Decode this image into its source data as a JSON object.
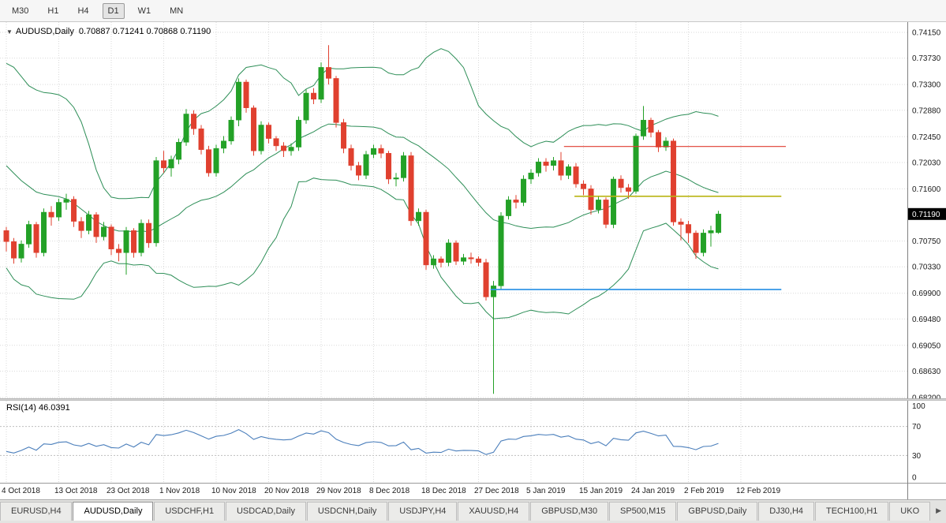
{
  "toolbar": {
    "timeframes": [
      {
        "label": "M30",
        "active": false
      },
      {
        "label": "H1",
        "active": false
      },
      {
        "label": "H4",
        "active": false
      },
      {
        "label": "D1",
        "active": true
      },
      {
        "label": "W1",
        "active": false
      },
      {
        "label": "MN",
        "active": false
      }
    ]
  },
  "chart": {
    "title": "AUDUSD,Daily",
    "ohlc_text": "0.70887 0.71241 0.70868 0.71190",
    "current_price": "0.71190",
    "menu_triangle": "▼"
  },
  "rsi": {
    "label": "RSI(14) 46.0391",
    "scale_labels": [
      "100",
      "70",
      "30",
      "0"
    ]
  },
  "colors": {
    "bull": "#23a127",
    "bear": "#e0402f",
    "bollinger": "#2d8e57",
    "rsi_line": "#4a7ebb",
    "hline_red": "#e03c31",
    "hline_olive": "#b9b513",
    "hline_blue": "#3296e6",
    "grid": "#d9d9d9",
    "axis_line": "#808080",
    "price_tag_bg": "#000000",
    "price_tag_text": "#ffffff"
  },
  "chart_data": {
    "type": "candlestick",
    "symbol": "AUDUSD",
    "period": "Daily",
    "last_ohlc": {
      "open": "0.70887",
      "high": "0.71241",
      "low": "0.70868",
      "close": "0.71190"
    },
    "y_axis_labels": [
      "0.74150",
      "0.73730",
      "0.73300",
      "0.72880",
      "0.72450",
      "0.72030",
      "0.71600",
      "0.70750",
      "0.70330",
      "0.69900",
      "0.69480",
      "0.69050",
      "0.68630",
      "0.68200"
    ],
    "x_ticks": [
      {
        "i": 0,
        "label": "4 Oct 2018"
      },
      {
        "i": 7,
        "label": "13 Oct 2018"
      },
      {
        "i": 14,
        "label": "23 Oct 2018"
      },
      {
        "i": 21,
        "label": "1 Nov 2018"
      },
      {
        "i": 28,
        "label": "10 Nov 2018"
      },
      {
        "i": 35,
        "label": "20 Nov 2018"
      },
      {
        "i": 42,
        "label": "29 Nov 2018"
      },
      {
        "i": 49,
        "label": "8 Dec 2018"
      },
      {
        "i": 56,
        "label": "18 Dec 2018"
      },
      {
        "i": 63,
        "label": "27 Dec 2018"
      },
      {
        "i": 70,
        "label": "5 Jan 2019"
      },
      {
        "i": 77,
        "label": "15 Jan 2019"
      },
      {
        "i": 84,
        "label": "24 Jan 2019"
      },
      {
        "i": 91,
        "label": "2 Feb 2019"
      },
      {
        "i": 98,
        "label": "12 Feb 2019"
      }
    ],
    "candles": [
      [
        0.7092,
        0.7098,
        0.7058,
        0.7074
      ],
      [
        0.7074,
        0.708,
        0.7038,
        0.7047
      ],
      [
        0.7047,
        0.7076,
        0.704,
        0.707
      ],
      [
        0.707,
        0.7108,
        0.7064,
        0.7102
      ],
      [
        0.7102,
        0.7106,
        0.7048,
        0.7056
      ],
      [
        0.7056,
        0.7128,
        0.705,
        0.7122
      ],
      [
        0.7122,
        0.7132,
        0.71,
        0.7114
      ],
      [
        0.7114,
        0.7144,
        0.7108,
        0.7138
      ],
      [
        0.7138,
        0.7152,
        0.7126,
        0.7143
      ],
      [
        0.7143,
        0.7148,
        0.7098,
        0.7107
      ],
      [
        0.7107,
        0.7114,
        0.708,
        0.7092
      ],
      [
        0.7092,
        0.7124,
        0.7086,
        0.7118
      ],
      [
        0.7118,
        0.7122,
        0.7072,
        0.7082
      ],
      [
        0.7082,
        0.7106,
        0.7076,
        0.7098
      ],
      [
        0.7098,
        0.7102,
        0.7052,
        0.7062
      ],
      [
        0.7062,
        0.707,
        0.7042,
        0.7056
      ],
      [
        0.7056,
        0.7098,
        0.702,
        0.7092
      ],
      [
        0.7092,
        0.7096,
        0.7048,
        0.7056
      ],
      [
        0.7056,
        0.711,
        0.705,
        0.7104
      ],
      [
        0.7104,
        0.711,
        0.7064,
        0.7072
      ],
      [
        0.7072,
        0.7212,
        0.7066,
        0.7206
      ],
      [
        0.7206,
        0.7222,
        0.7186,
        0.7194
      ],
      [
        0.7194,
        0.7214,
        0.718,
        0.7208
      ],
      [
        0.7208,
        0.7242,
        0.72,
        0.7236
      ],
      [
        0.7236,
        0.729,
        0.723,
        0.7282
      ],
      [
        0.7282,
        0.7288,
        0.7248,
        0.7258
      ],
      [
        0.7258,
        0.7264,
        0.7216,
        0.7224
      ],
      [
        0.7224,
        0.723,
        0.718,
        0.7186
      ],
      [
        0.7186,
        0.7232,
        0.718,
        0.7226
      ],
      [
        0.7226,
        0.7246,
        0.7218,
        0.7238
      ],
      [
        0.7238,
        0.7278,
        0.7232,
        0.7272
      ],
      [
        0.7272,
        0.734,
        0.7262,
        0.7334
      ],
      [
        0.7334,
        0.7338,
        0.7284,
        0.7292
      ],
      [
        0.7292,
        0.7296,
        0.7214,
        0.7222
      ],
      [
        0.7222,
        0.727,
        0.7216,
        0.7264
      ],
      [
        0.7264,
        0.7268,
        0.7234,
        0.7242
      ],
      [
        0.7242,
        0.7246,
        0.7222,
        0.723
      ],
      [
        0.723,
        0.7236,
        0.7212,
        0.7222
      ],
      [
        0.7222,
        0.7234,
        0.7214,
        0.7228
      ],
      [
        0.7228,
        0.7278,
        0.7222,
        0.7272
      ],
      [
        0.7272,
        0.7322,
        0.7266,
        0.7316
      ],
      [
        0.7316,
        0.7324,
        0.7298,
        0.7306
      ],
      [
        0.7306,
        0.7366,
        0.73,
        0.7358
      ],
      [
        0.7358,
        0.7394,
        0.733,
        0.734
      ],
      [
        0.734,
        0.7344,
        0.726,
        0.7268
      ],
      [
        0.7268,
        0.7274,
        0.7218,
        0.7226
      ],
      [
        0.7226,
        0.7232,
        0.719,
        0.7198
      ],
      [
        0.7198,
        0.7204,
        0.7174,
        0.7182
      ],
      [
        0.7182,
        0.7222,
        0.7176,
        0.7216
      ],
      [
        0.7216,
        0.7232,
        0.721,
        0.7226
      ],
      [
        0.7226,
        0.7232,
        0.721,
        0.7218
      ],
      [
        0.7218,
        0.7222,
        0.7168,
        0.7176
      ],
      [
        0.7176,
        0.7186,
        0.7164,
        0.7178
      ],
      [
        0.7178,
        0.722,
        0.7172,
        0.7214
      ],
      [
        0.7214,
        0.722,
        0.71,
        0.7108
      ],
      [
        0.7108,
        0.7128,
        0.71,
        0.7122
      ],
      [
        0.7122,
        0.7126,
        0.7028,
        0.7036
      ],
      [
        0.7036,
        0.7052,
        0.703,
        0.7046
      ],
      [
        0.7046,
        0.705,
        0.7032,
        0.704
      ],
      [
        0.704,
        0.7078,
        0.7034,
        0.7072
      ],
      [
        0.7072,
        0.7076,
        0.7036,
        0.7042
      ],
      [
        0.7042,
        0.7054,
        0.7036,
        0.7048
      ],
      [
        0.7048,
        0.7056,
        0.7038,
        0.7046
      ],
      [
        0.7046,
        0.705,
        0.7034,
        0.704
      ],
      [
        0.704,
        0.7046,
        0.6978,
        0.6984
      ],
      [
        0.6984,
        0.701,
        0.6826,
        0.7002
      ],
      [
        0.7002,
        0.7122,
        0.6996,
        0.7116
      ],
      [
        0.7116,
        0.7148,
        0.711,
        0.7142
      ],
      [
        0.7142,
        0.715,
        0.7128,
        0.7138
      ],
      [
        0.7138,
        0.7182,
        0.7132,
        0.7176
      ],
      [
        0.7176,
        0.7192,
        0.7168,
        0.7186
      ],
      [
        0.7186,
        0.721,
        0.718,
        0.7204
      ],
      [
        0.7204,
        0.721,
        0.7188,
        0.7198
      ],
      [
        0.7198,
        0.7212,
        0.719,
        0.7206
      ],
      [
        0.7206,
        0.722,
        0.7174,
        0.7182
      ],
      [
        0.7182,
        0.72,
        0.7176,
        0.7196
      ],
      [
        0.7196,
        0.7202,
        0.7162,
        0.7168
      ],
      [
        0.7168,
        0.7174,
        0.715,
        0.716
      ],
      [
        0.716,
        0.7166,
        0.7118,
        0.7126
      ],
      [
        0.7126,
        0.7148,
        0.712,
        0.7142
      ],
      [
        0.7142,
        0.7146,
        0.7096,
        0.7102
      ],
      [
        0.7102,
        0.718,
        0.7096,
        0.7176
      ],
      [
        0.7176,
        0.7182,
        0.7154,
        0.7162
      ],
      [
        0.7162,
        0.7168,
        0.7144,
        0.7156
      ],
      [
        0.7156,
        0.725,
        0.7152,
        0.7246
      ],
      [
        0.7246,
        0.7295,
        0.724,
        0.7272
      ],
      [
        0.7272,
        0.7276,
        0.7244,
        0.7252
      ],
      [
        0.7252,
        0.7256,
        0.722,
        0.7228
      ],
      [
        0.7228,
        0.7244,
        0.7222,
        0.7238
      ],
      [
        0.7238,
        0.7242,
        0.71,
        0.7106
      ],
      [
        0.7106,
        0.7112,
        0.7076,
        0.7102
      ],
      [
        0.7102,
        0.7108,
        0.7072,
        0.7088
      ],
      [
        0.7088,
        0.7092,
        0.7046,
        0.7056
      ],
      [
        0.7056,
        0.7094,
        0.705,
        0.7088
      ],
      [
        0.7088,
        0.71,
        0.7066,
        0.7092
      ],
      [
        0.70887,
        0.71241,
        0.70868,
        0.7119
      ]
    ],
    "warmup_closes": [
      0.7255,
      0.7295,
      0.731,
      0.7288,
      0.7242,
      0.7195,
      0.7152,
      0.7178,
      0.7218,
      0.7248,
      0.7282,
      0.7308,
      0.7292,
      0.7232,
      0.7178,
      0.7122,
      0.7092,
      0.7072,
      0.7084,
      0.7095
    ],
    "hlines": [
      {
        "value": 0.7229,
        "from_index": 74.4,
        "to_index": 104.0,
        "color_key": "hline_red",
        "width": 1.2
      },
      {
        "value": 0.7148,
        "from_index": 75.8,
        "to_index": 103.4,
        "color_key": "hline_olive",
        "width": 1.6
      },
      {
        "value": 0.6996,
        "from_index": 64.6,
        "to_index": 103.4,
        "color_key": "hline_blue",
        "width": 1.8
      }
    ],
    "indicators": {
      "bollinger": {
        "period": 20,
        "deviation": 2
      },
      "rsi": {
        "period": 14,
        "value": 46.0391,
        "levels": [
          70,
          30
        ]
      }
    }
  },
  "tabs": {
    "items": [
      {
        "label": "EURUSD,H4",
        "active": false
      },
      {
        "label": "AUDUSD,Daily",
        "active": true
      },
      {
        "label": "USDCHF,H1",
        "active": false
      },
      {
        "label": "USDCAD,Daily",
        "active": false
      },
      {
        "label": "USDCNH,Daily",
        "active": false
      },
      {
        "label": "USDJPY,H4",
        "active": false
      },
      {
        "label": "XAUUSD,H4",
        "active": false
      },
      {
        "label": "GBPUSD,M30",
        "active": false
      },
      {
        "label": "SP500,M15",
        "active": false
      },
      {
        "label": "GBPUSD,Daily",
        "active": false
      },
      {
        "label": "DJ30,H4",
        "active": false
      },
      {
        "label": "TECH100,H1",
        "active": false
      },
      {
        "label": "UKO",
        "active": false
      }
    ],
    "scroll_right_icon": "▶"
  }
}
